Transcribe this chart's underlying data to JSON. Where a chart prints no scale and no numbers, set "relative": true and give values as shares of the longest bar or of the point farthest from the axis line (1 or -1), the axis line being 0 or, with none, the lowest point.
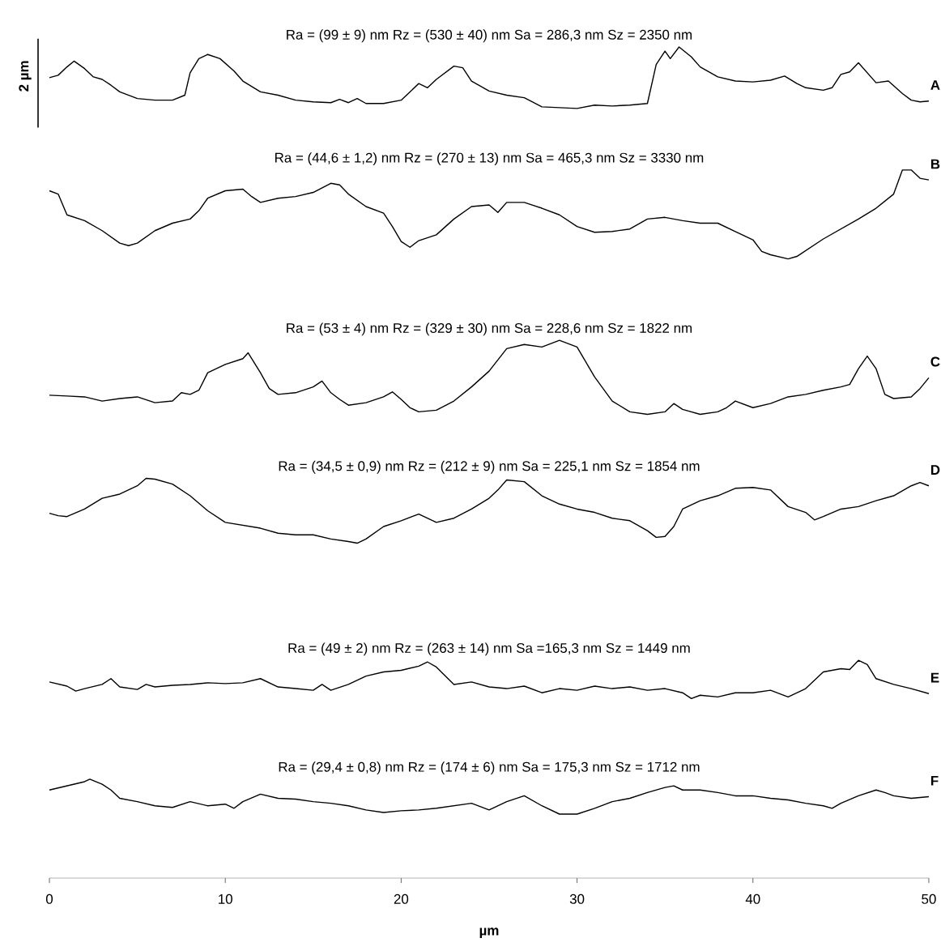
{
  "chart_data": {
    "type": "line",
    "relative": true,
    "xlabel": "µm",
    "xlim": [
      0,
      50
    ],
    "xticks": [
      0,
      10,
      20,
      30,
      40,
      50
    ],
    "marker": "none",
    "annotations": [
      "Ra = (99 ± 9) nm  Rz = (530 ± 40) nm  Sa = 286,3 nm  Sz = 2350 nm",
      "Ra = (44,6 ± 1,2) nm  Rz = (270 ± 13) nm  Sa = 465,3 nm  Sz = 3330 nm",
      "Ra = (53 ± 4) nm  Rz = (329 ± 30) nm  Sa = 228,6 nm  Sz = 1822 nm",
      "Ra = (34,5 ± 0,9) nm  Rz = (212 ± 9) nm  Sa = 225,1 nm  Sz = 1854 nm",
      "Ra = (49 ± 2) nm  Rz = (263 ± 14) nm  Sa =165,3 nm  Sz = 1449 nm",
      "Ra = (29,4 ± 0,8) nm  Rz = (174 ± 6) nm  Sa = 175,3 nm  Sz = 1712 nm",
      "2 µm"
    ],
    "series": [
      {
        "name": "A",
        "color": "#000000",
        "x": [
          0,
          0.5,
          1,
          1.4,
          2,
          2.5,
          3,
          3.5,
          4,
          5,
          6,
          7,
          7.7,
          8,
          8.5,
          9,
          9.7,
          10.5,
          11,
          12,
          13,
          14,
          15,
          16,
          16.5,
          17,
          17.5,
          18,
          19,
          20,
          20.5,
          21,
          21.5,
          22,
          23,
          23.5,
          24,
          25,
          26,
          27,
          28,
          29,
          30,
          31,
          32,
          33,
          34,
          34.5,
          35,
          35.3,
          35.8,
          36.5,
          37,
          38,
          39,
          40,
          41,
          41.8,
          42.5,
          43,
          44,
          44.5,
          45,
          45.5,
          46,
          46.5,
          47,
          47.7,
          48.5,
          49,
          49.5,
          50
        ],
        "values": [
          0.963,
          0.966,
          0.976,
          0.983,
          0.974,
          0.964,
          0.961,
          0.954,
          0.946,
          0.938,
          0.936,
          0.936,
          0.942,
          0.969,
          0.986,
          0.991,
          0.986,
          0.971,
          0.959,
          0.946,
          0.942,
          0.936,
          0.934,
          0.933,
          0.937,
          0.933,
          0.938,
          0.932,
          0.932,
          0.936,
          0.946,
          0.956,
          0.951,
          0.961,
          0.977,
          0.975,
          0.959,
          0.947,
          0.942,
          0.939,
          0.928,
          0.927,
          0.926,
          0.93,
          0.929,
          0.93,
          0.932,
          0.979,
          0.995,
          0.986,
          1.0,
          0.988,
          0.976,
          0.964,
          0.959,
          0.958,
          0.96,
          0.965,
          0.956,
          0.951,
          0.948,
          0.951,
          0.967,
          0.97,
          0.981,
          0.969,
          0.957,
          0.959,
          0.944,
          0.936,
          0.934,
          0.935
        ]
      },
      {
        "name": "B",
        "color": "#000000",
        "x": [
          0,
          0.5,
          1,
          2,
          3,
          4,
          4.5,
          5,
          6,
          7,
          8,
          8.5,
          9,
          10,
          11,
          11.5,
          12,
          13,
          14,
          15,
          16,
          16.5,
          17,
          18,
          19,
          19.5,
          20,
          20.5,
          21,
          22,
          23,
          24,
          25,
          25.5,
          26,
          27,
          28,
          29,
          30,
          31,
          32,
          33,
          34,
          35,
          36,
          37,
          38,
          39,
          40,
          40.5,
          41,
          42,
          42.5,
          44,
          46,
          47,
          48,
          48.5,
          49,
          49.5,
          50
        ],
        "values": [
          0.827,
          0.823,
          0.798,
          0.791,
          0.779,
          0.764,
          0.761,
          0.764,
          0.779,
          0.788,
          0.793,
          0.803,
          0.818,
          0.827,
          0.829,
          0.82,
          0.813,
          0.818,
          0.82,
          0.825,
          0.836,
          0.834,
          0.823,
          0.808,
          0.8,
          0.784,
          0.766,
          0.759,
          0.767,
          0.774,
          0.793,
          0.808,
          0.81,
          0.801,
          0.813,
          0.813,
          0.806,
          0.798,
          0.784,
          0.777,
          0.778,
          0.781,
          0.793,
          0.795,
          0.791,
          0.788,
          0.788,
          0.778,
          0.768,
          0.754,
          0.75,
          0.745,
          0.748,
          0.769,
          0.793,
          0.806,
          0.823,
          0.852,
          0.852,
          0.842,
          0.84
        ]
      },
      {
        "name": "C",
        "color": "#000000",
        "x": [
          0,
          1,
          2,
          3,
          4,
          5,
          6,
          7,
          7.5,
          8,
          8.5,
          9,
          10,
          11,
          11.3,
          12,
          12.5,
          13,
          14,
          15,
          15.5,
          16,
          16.5,
          17,
          18,
          19,
          19.5,
          20,
          20.5,
          21,
          22,
          23,
          24,
          25,
          26,
          27,
          28,
          29,
          30,
          31,
          32,
          33,
          34,
          35,
          35.5,
          36,
          37,
          38,
          38.5,
          39,
          40,
          41,
          42,
          43,
          44,
          45,
          45.5,
          46,
          46.5,
          47,
          47.5,
          48,
          49,
          49.5,
          50
        ],
        "values": [
          0.581,
          0.58,
          0.579,
          0.574,
          0.577,
          0.579,
          0.572,
          0.574,
          0.584,
          0.582,
          0.587,
          0.608,
          0.618,
          0.625,
          0.632,
          0.608,
          0.589,
          0.582,
          0.584,
          0.591,
          0.598,
          0.584,
          0.576,
          0.569,
          0.572,
          0.579,
          0.585,
          0.576,
          0.566,
          0.561,
          0.563,
          0.574,
          0.591,
          0.61,
          0.637,
          0.642,
          0.639,
          0.647,
          0.639,
          0.603,
          0.574,
          0.561,
          0.558,
          0.561,
          0.571,
          0.564,
          0.558,
          0.561,
          0.566,
          0.574,
          0.566,
          0.571,
          0.579,
          0.582,
          0.587,
          0.591,
          0.594,
          0.613,
          0.628,
          0.613,
          0.582,
          0.577,
          0.579,
          0.589,
          0.602
        ]
      },
      {
        "name": "D",
        "color": "#000000",
        "x": [
          0,
          0.5,
          1,
          2,
          3,
          4,
          5,
          5.5,
          6,
          7,
          8,
          9,
          10,
          12,
          13,
          14,
          15,
          16,
          17,
          17.5,
          18,
          19,
          20,
          21,
          22,
          23,
          24,
          25,
          25.5,
          26,
          27,
          28,
          29,
          30,
          31,
          32,
          33,
          34,
          34.5,
          35,
          35.5,
          36,
          37,
          38,
          39,
          40,
          41,
          42,
          43,
          43.5,
          44,
          45,
          46,
          47,
          48,
          49,
          49.5,
          50
        ],
        "values": [
          0.439,
          0.436,
          0.435,
          0.444,
          0.457,
          0.462,
          0.472,
          0.481,
          0.48,
          0.474,
          0.46,
          0.442,
          0.428,
          0.421,
          0.415,
          0.413,
          0.413,
          0.408,
          0.405,
          0.403,
          0.408,
          0.423,
          0.43,
          0.438,
          0.428,
          0.433,
          0.444,
          0.457,
          0.467,
          0.479,
          0.477,
          0.46,
          0.45,
          0.444,
          0.44,
          0.433,
          0.43,
          0.418,
          0.41,
          0.411,
          0.423,
          0.444,
          0.454,
          0.46,
          0.469,
          0.47,
          0.467,
          0.447,
          0.44,
          0.431,
          0.435,
          0.444,
          0.447,
          0.454,
          0.46,
          0.472,
          0.476,
          0.472
        ]
      },
      {
        "name": "E",
        "color": "#000000",
        "x": [
          0,
          1,
          1.5,
          2,
          3,
          3.5,
          4,
          5,
          5.5,
          6,
          7,
          8,
          9,
          10,
          11,
          12,
          13,
          14,
          15,
          15.5,
          16,
          17,
          18,
          19,
          20,
          21,
          21.5,
          22,
          23,
          24,
          25,
          26,
          27,
          28,
          29,
          30,
          31,
          32,
          33,
          34,
          35,
          36,
          36.5,
          37,
          38,
          39,
          40,
          41,
          42,
          43,
          44,
          45,
          45.5,
          46,
          46.5,
          47,
          48,
          49,
          50
        ],
        "values": [
          0.236,
          0.231,
          0.225,
          0.228,
          0.233,
          0.24,
          0.23,
          0.227,
          0.233,
          0.23,
          0.232,
          0.233,
          0.235,
          0.234,
          0.235,
          0.24,
          0.23,
          0.228,
          0.226,
          0.233,
          0.226,
          0.233,
          0.243,
          0.248,
          0.25,
          0.255,
          0.26,
          0.254,
          0.233,
          0.236,
          0.23,
          0.228,
          0.231,
          0.223,
          0.228,
          0.226,
          0.231,
          0.228,
          0.23,
          0.226,
          0.228,
          0.223,
          0.216,
          0.22,
          0.218,
          0.223,
          0.223,
          0.226,
          0.218,
          0.228,
          0.248,
          0.252,
          0.251,
          0.262,
          0.257,
          0.24,
          0.233,
          0.228,
          0.222
        ]
      },
      {
        "name": "F",
        "color": "#000000",
        "x": [
          0,
          1,
          2,
          2.3,
          3,
          3.5,
          4,
          5,
          6,
          7,
          8,
          9,
          10,
          10.5,
          11,
          12,
          13,
          14,
          15,
          16,
          17,
          18,
          19,
          20,
          21,
          22,
          23,
          24,
          25,
          26,
          27,
          28,
          29,
          30,
          31,
          32,
          33,
          34,
          35,
          35.5,
          36,
          37,
          38,
          39,
          40,
          41,
          42,
          43,
          44,
          44.5,
          45,
          46,
          47,
          47.5,
          48,
          49,
          50
        ],
        "values": [
          0.106,
          0.111,
          0.116,
          0.119,
          0.113,
          0.106,
          0.096,
          0.092,
          0.087,
          0.085,
          0.092,
          0.087,
          0.089,
          0.084,
          0.092,
          0.101,
          0.096,
          0.095,
          0.092,
          0.09,
          0.087,
          0.082,
          0.079,
          0.081,
          0.082,
          0.084,
          0.087,
          0.09,
          0.082,
          0.092,
          0.099,
          0.087,
          0.077,
          0.077,
          0.084,
          0.092,
          0.096,
          0.103,
          0.109,
          0.111,
          0.106,
          0.106,
          0.103,
          0.099,
          0.099,
          0.096,
          0.094,
          0.09,
          0.087,
          0.084,
          0.09,
          0.099,
          0.106,
          0.103,
          0.099,
          0.096,
          0.098
        ]
      }
    ]
  }
}
